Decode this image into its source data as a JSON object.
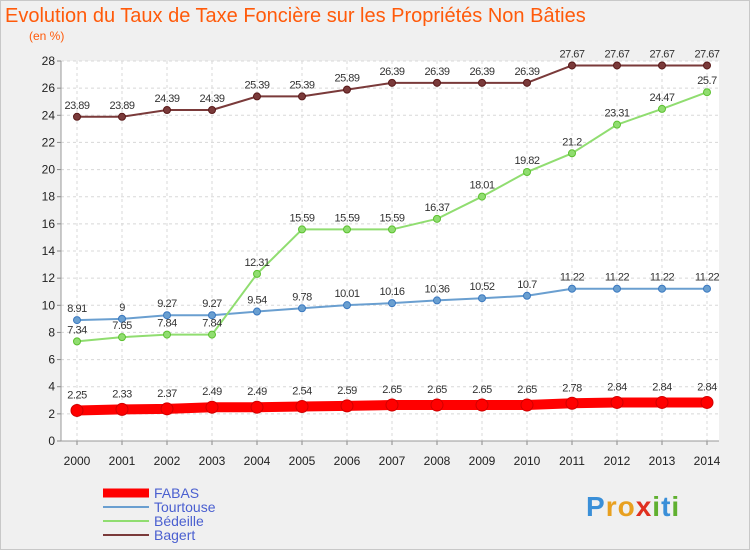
{
  "header": {
    "title": "Evolution du Taux de Taxe Foncière sur les Propriétés Non Bâties",
    "subtitle": "(en %)"
  },
  "logo": {
    "letters": [
      {
        "char": "P",
        "color": "#3a8fd8"
      },
      {
        "char": "r",
        "color": "#e8a020"
      },
      {
        "char": "o",
        "color": "#e8a020"
      },
      {
        "char": "x",
        "color": "#e03020"
      },
      {
        "char": "i",
        "color": "#60b030"
      },
      {
        "char": "t",
        "color": "#3a8fd8"
      },
      {
        "char": "i",
        "color": "#60b030"
      }
    ]
  },
  "chart_data": {
    "type": "line",
    "x": [
      "2000",
      "2001",
      "2002",
      "2003",
      "2004",
      "2005",
      "2006",
      "2007",
      "2008",
      "2009",
      "2010",
      "2011",
      "2012",
      "2013",
      "2014"
    ],
    "ylim": [
      0,
      28
    ],
    "yticks": [
      0,
      2,
      4,
      6,
      8,
      10,
      12,
      14,
      16,
      18,
      20,
      22,
      24,
      26,
      28
    ],
    "grid": true,
    "legend": "bottom-left",
    "series": [
      {
        "name": "FABAS",
        "color": "#ff0000",
        "marker_color": "#d00000",
        "emphasis": true,
        "values": [
          2.25,
          2.33,
          2.37,
          2.49,
          2.49,
          2.54,
          2.59,
          2.65,
          2.65,
          2.65,
          2.65,
          2.78,
          2.84,
          2.84,
          2.84
        ],
        "labels": [
          "2.25",
          "2.33",
          "2.37",
          "2.49",
          "2.49",
          "2.54",
          "2.59",
          "2.65",
          "2.65",
          "2.65",
          "2.65",
          "2.78",
          "2.84",
          "2.84",
          "2.84"
        ]
      },
      {
        "name": "Tourtouse",
        "color": "#6a9fd0",
        "marker_color": "#3a78c0",
        "emphasis": false,
        "values": [
          8.91,
          9,
          9.27,
          9.27,
          9.54,
          9.78,
          10.01,
          10.16,
          10.36,
          10.52,
          10.7,
          11.22,
          11.22,
          11.22,
          11.22
        ],
        "labels": [
          "8.91",
          "9",
          "9.27",
          "9.27",
          "9.54",
          "9.78",
          "10.01",
          "10.16",
          "10.36",
          "10.52",
          "10.7",
          "11.22",
          "11.22",
          "11.22",
          "11.22"
        ]
      },
      {
        "name": "Bédeille",
        "color": "#90dd70",
        "marker_color": "#5cc030",
        "emphasis": false,
        "values": [
          7.34,
          7.65,
          7.84,
          7.84,
          12.31,
          15.59,
          15.59,
          15.59,
          16.37,
          18.01,
          19.82,
          21.2,
          23.31,
          24.47,
          25.7
        ],
        "labels": [
          "7.34",
          "7.65",
          "7.84",
          "7.84",
          "12.31",
          "15.59",
          "15.59",
          "15.59",
          "16.37",
          "18.01",
          "19.82",
          "21.2",
          "23.31",
          "24.47",
          "25.7"
        ]
      },
      {
        "name": "Bagert",
        "color": "#7a3a3a",
        "marker_color": "#5a1a1a",
        "emphasis": false,
        "values": [
          23.89,
          23.89,
          24.39,
          24.39,
          25.39,
          25.39,
          25.89,
          26.39,
          26.39,
          26.39,
          26.39,
          27.67,
          27.67,
          27.67,
          27.67
        ],
        "labels": [
          "23.89",
          "23.89",
          "24.39",
          "24.39",
          "25.39",
          "25.39",
          "25.89",
          "26.39",
          "26.39",
          "26.39",
          "26.39",
          "27.67",
          "27.67",
          "27.67",
          "27.67"
        ]
      }
    ]
  }
}
